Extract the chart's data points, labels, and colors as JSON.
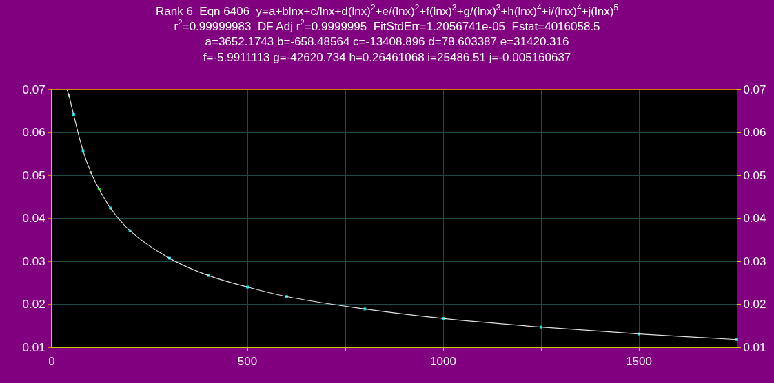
{
  "chart_data": {
    "type": "scatter",
    "title": "Rank 6  Eqn 6406  y=a+blnx+c/lnx+d(lnx)$^{2}$+e/(lnx)$^{2}$+f(lnx)$^{3}$+g/(lnx)$^{3}$+h(lnx)$^{4}$+i/(lnx)$^{4}$+j(lnx)$^{5}$",
    "subtitle": "r$^{2}$=0.99999983  DF Adj r$^{2}$=0.9999995  FitStdErr=1.2056741e-05  Fstat=4016058.5\na=3652.1743 b=-658.48564 c=-13408.896 d=78.603387 e=31420.316\nf=-5.9911113 g=-42620.734 h=0.26461068 i=25486.51 j=-0.005160637",
    "series": [
      {
        "type": "line",
        "axis": "y2",
        "color": "#e0e0e0",
        "marker": "none",
        "x": [
          39,
          44,
          56,
          80,
          100,
          121,
          150,
          200,
          301,
          400,
          500,
          600,
          800,
          1000,
          1250,
          1500,
          1750
        ],
        "values": [
          0.07,
          0.0686,
          0.0641,
          0.0557,
          0.0507,
          0.0468,
          0.0424,
          0.0371,
          0.0307,
          0.0267,
          0.024,
          0.0218,
          0.0189,
          0.0167,
          0.0147,
          0.0131,
          0.0118
        ]
      },
      {
        "marker": "square",
        "colors": [
          "#00e0e0",
          "#00e0e0",
          "#00e0e0",
          "#20e020",
          "#20e020",
          "#00e0e0",
          "#00e0e0",
          "#00e0e0",
          "#00e0e0",
          "#00e0e0",
          "#00e0e0",
          "#00e0e0",
          "#00e0e0",
          "#00e0e0",
          "#00e0e0",
          "#00e0e0"
        ],
        "x": [
          44,
          56,
          80,
          100,
          121,
          150,
          200,
          301,
          400,
          500,
          600,
          800,
          1000,
          1250,
          1500,
          1750
        ],
        "values": [
          0.0686,
          0.0641,
          0.0557,
          0.0507,
          0.0468,
          0.0424,
          0.0371,
          0.0307,
          0.0267,
          0.024,
          0.0218,
          0.0189,
          0.0167,
          0.0147,
          0.0131,
          0.0118
        ]
      }
    ],
    "xlim": [
      0,
      1750
    ],
    "xticks": [
      0,
      {
        "value": 250,
        "label": null
      },
      500,
      {
        "value": 750,
        "label": null
      },
      1000,
      {
        "value": 1250,
        "label": null
      },
      1500,
      {
        "value": 1750,
        "label": null
      }
    ],
    "ylim": [
      0.01,
      0.07
    ],
    "yticks": [
      0.01,
      0.02,
      0.03,
      0.04,
      0.05,
      0.06,
      0.07
    ],
    "y2lim": [
      0.01,
      0.07
    ],
    "y2ticks": [
      0.01,
      0.02,
      0.03,
      0.04,
      0.05,
      0.06,
      0.07
    ],
    "grid": true
  }
}
